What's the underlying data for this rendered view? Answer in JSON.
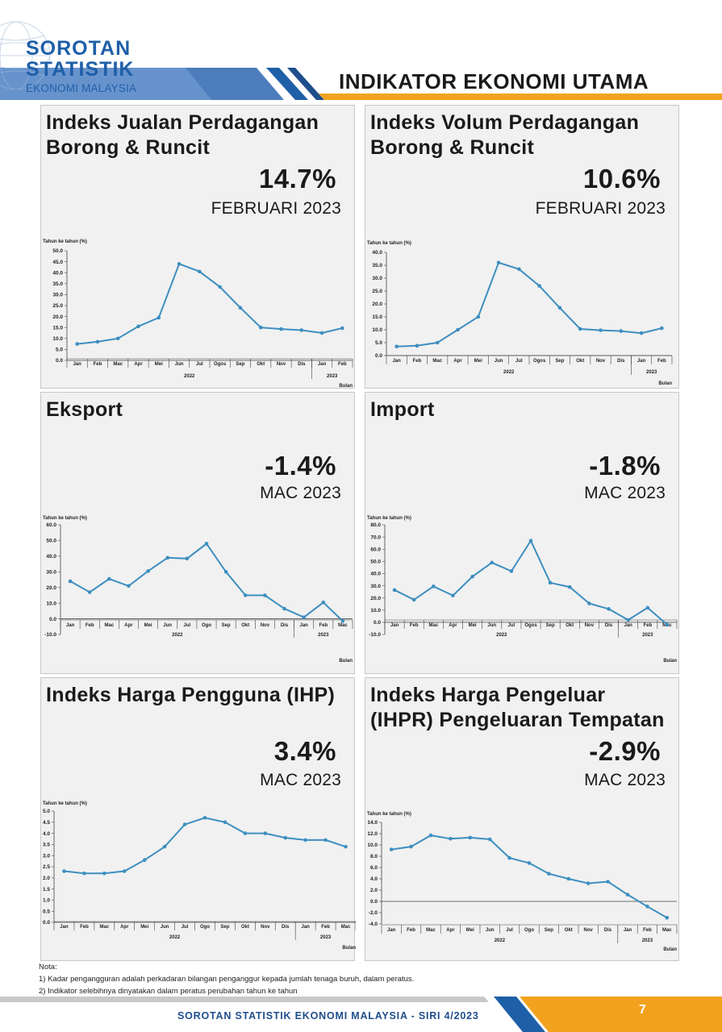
{
  "brand": {
    "line1": "SOROTAN",
    "line2": "STATISTIK",
    "line3": "EKONOMI MALAYSIA"
  },
  "header_title": "INDIKATOR EKONOMI UTAMA",
  "colors": {
    "line": "#3d8fc0",
    "brand_blue": "#1f5fa8",
    "accent_orange": "#f3a21d",
    "panel_bg": "#f1f1f1"
  },
  "panels": [
    {
      "title": "Indeks Jualan Perdagangan Borong & Runcit",
      "value": "14.7%",
      "period": "FEBRUARI 2023"
    },
    {
      "title": "Indeks Volum Perdagangan Borong & Runcit",
      "value": "10.6%",
      "period": "FEBRUARI 2023"
    },
    {
      "title": "Eksport",
      "value": "-1.4%",
      "period": "MAC 2023"
    },
    {
      "title": "Import",
      "value": "-1.8%",
      "period": "MAC 2023"
    },
    {
      "title": "Indeks Harga Pengguna (IHP)",
      "value": "3.4%",
      "period": "MAC 2023"
    },
    {
      "title": "Indeks Harga Pengeluar (IHPR) Pengeluaran Tempatan",
      "value": "-2.9%",
      "period": "MAC 2023"
    }
  ],
  "chart_data": [
    {
      "type": "line",
      "ylabel": "Tahun ke tahun (%)",
      "xlabel": "Bulan",
      "categories": [
        "Jan",
        "Feb",
        "Mac",
        "Apr",
        "Mei",
        "Jun",
        "Jul",
        "Ogos",
        "Sep",
        "Okt",
        "Nov",
        "Dis",
        "Jan",
        "Feb"
      ],
      "year_labels": [
        "2022",
        "2023"
      ],
      "values": [
        7.5,
        8.5,
        10.0,
        15.5,
        19.5,
        44.0,
        40.5,
        33.5,
        24.0,
        15.0,
        14.3,
        13.8,
        12.5,
        14.7
      ],
      "ylim": [
        0,
        50
      ],
      "yticks": [
        "0.0",
        "5.0",
        "10.0",
        "15.0",
        "20.0",
        "25.0",
        "30.0",
        "35.0",
        "40.0",
        "45.0",
        "50.0"
      ]
    },
    {
      "type": "line",
      "ylabel": "Tahun ke tahun (%)",
      "xlabel": "Bulan",
      "categories": [
        "Jan",
        "Feb",
        "Mac",
        "Apr",
        "Mei",
        "Jun",
        "Jul",
        "Ogos",
        "Sep",
        "Okt",
        "Nov",
        "Dis",
        "Jan",
        "Feb"
      ],
      "year_labels": [
        "2022",
        "2023"
      ],
      "values": [
        3.5,
        3.8,
        5.0,
        10.0,
        15.0,
        36.0,
        33.5,
        27.0,
        18.5,
        10.3,
        9.8,
        9.5,
        8.7,
        10.6
      ],
      "ylim": [
        0,
        40
      ],
      "yticks": [
        "0.0",
        "5.0",
        "10.0",
        "15.0",
        "20.0",
        "25.0",
        "30.0",
        "35.0",
        "40.0"
      ]
    },
    {
      "type": "line",
      "ylabel": "Tahun ke tahun (%)",
      "xlabel": "Bulan",
      "categories": [
        "Jan",
        "Feb",
        "Mac",
        "Apr",
        "Mei",
        "Jun",
        "Jul",
        "Ogo",
        "Sep",
        "Okt",
        "Nov",
        "Dis",
        "Jan",
        "Feb",
        "Mac"
      ],
      "year_labels": [
        "2022",
        "2023"
      ],
      "values": [
        24.0,
        17.0,
        25.5,
        21.0,
        30.5,
        39.0,
        38.5,
        48.0,
        30.0,
        15.0,
        15.0,
        6.5,
        1.0,
        10.5,
        -1.4
      ],
      "ylim": [
        -10,
        60
      ],
      "yticks": [
        "-10.0",
        "0.0",
        "10.0",
        "20.0",
        "30.0",
        "40.0",
        "50.0",
        "60.0"
      ]
    },
    {
      "type": "line",
      "ylabel": "Tahun ke tahun (%)",
      "xlabel": "Bulan",
      "categories": [
        "Jan",
        "Feb",
        "Mac",
        "Apr",
        "Mei",
        "Jun",
        "Jul",
        "Ogos",
        "Sep",
        "Okt",
        "Nov",
        "Dis",
        "Jan",
        "Feb",
        "Mac"
      ],
      "year_labels": [
        "2022",
        "2023"
      ],
      "values": [
        26.5,
        18.5,
        29.5,
        22.0,
        37.5,
        49.0,
        42.0,
        67.0,
        32.5,
        29.0,
        15.5,
        11.0,
        2.0,
        12.0,
        -1.8
      ],
      "ylim": [
        -10,
        80
      ],
      "yticks": [
        "-10.0",
        "0.0",
        "10.0",
        "20.0",
        "30.0",
        "40.0",
        "50.0",
        "60.0",
        "70.0",
        "80.0"
      ]
    },
    {
      "type": "line",
      "ylabel": "Tahun ke tahun (%)",
      "xlabel": "Bulan",
      "categories": [
        "Jan",
        "Feb",
        "Mac",
        "Apr",
        "Mei",
        "Jun",
        "Jul",
        "Ogo",
        "Sep",
        "Okt",
        "Nov",
        "Dis",
        "Jan",
        "Feb",
        "Mac"
      ],
      "year_labels": [
        "2022",
        "2023"
      ],
      "values": [
        2.3,
        2.2,
        2.2,
        2.3,
        2.8,
        3.4,
        4.4,
        4.7,
        4.5,
        4.0,
        4.0,
        3.8,
        3.7,
        3.7,
        3.4
      ],
      "ylim": [
        0,
        5
      ],
      "yticks": [
        "0.0",
        "0.5",
        "1.0",
        "1.5",
        "2.0",
        "2.5",
        "3.0",
        "3.5",
        "4.0",
        "4.5",
        "5.0"
      ]
    },
    {
      "type": "line",
      "ylabel": "Tahun ke tahun (%)",
      "xlabel": "Bulan",
      "categories": [
        "Jan",
        "Feb",
        "Mac",
        "Apr",
        "Mei",
        "Jun",
        "Jul",
        "Ogo",
        "Sep",
        "Okt",
        "Nov",
        "Dis",
        "Jan",
        "Feb",
        "Mac"
      ],
      "year_labels": [
        "2022",
        "2023"
      ],
      "values": [
        9.2,
        9.7,
        11.7,
        11.1,
        11.3,
        11.0,
        7.7,
        6.8,
        4.9,
        4.0,
        3.2,
        3.5,
        1.2,
        -0.9,
        -2.9
      ],
      "ylim": [
        -4,
        14
      ],
      "yticks": [
        "-4.0",
        "-2.0",
        "0.0",
        "2.0",
        "4.0",
        "6.0",
        "8.0",
        "10.0",
        "12.0",
        "14.0"
      ]
    }
  ],
  "notes": {
    "heading": "Nota:",
    "items": [
      "1) Kadar pengangguran adalah perkadaran bilangan penganggur kepada jumlah tenaga buruh, dalam peratus.",
      "2) Indikator selebihnya dinyatakan dalam peratus perubahan tahun ke tahun"
    ]
  },
  "footer": {
    "text": "SOROTAN STATISTIK EKONOMI MALAYSIA - SIRI 4/2023",
    "page": "7"
  }
}
